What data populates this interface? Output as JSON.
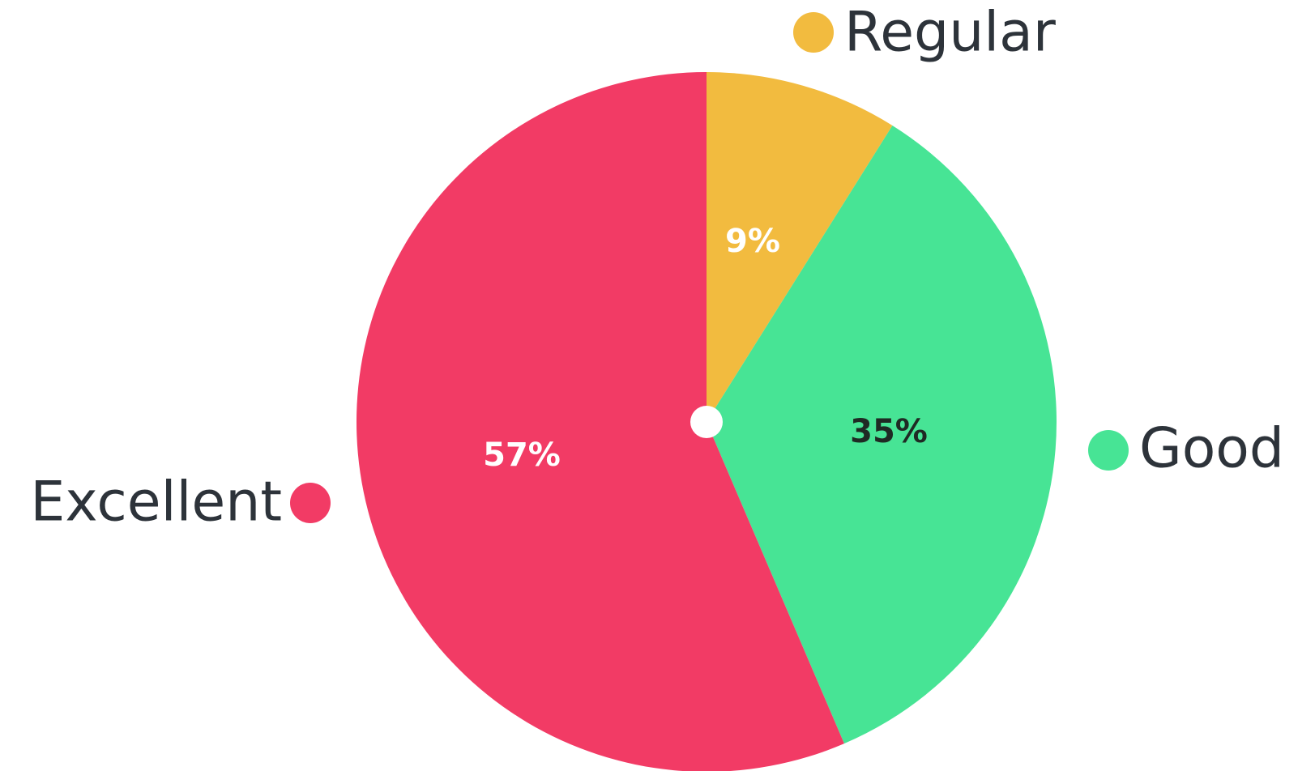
{
  "chart_data": {
    "type": "pie",
    "categories": [
      "Regular",
      "Good",
      "Excellent"
    ],
    "values": [
      9,
      35,
      57
    ],
    "value_labels": [
      "9%",
      "35%",
      "57%"
    ],
    "colors": [
      "#f2bb3f",
      "#47e495",
      "#f23b65"
    ]
  }
}
